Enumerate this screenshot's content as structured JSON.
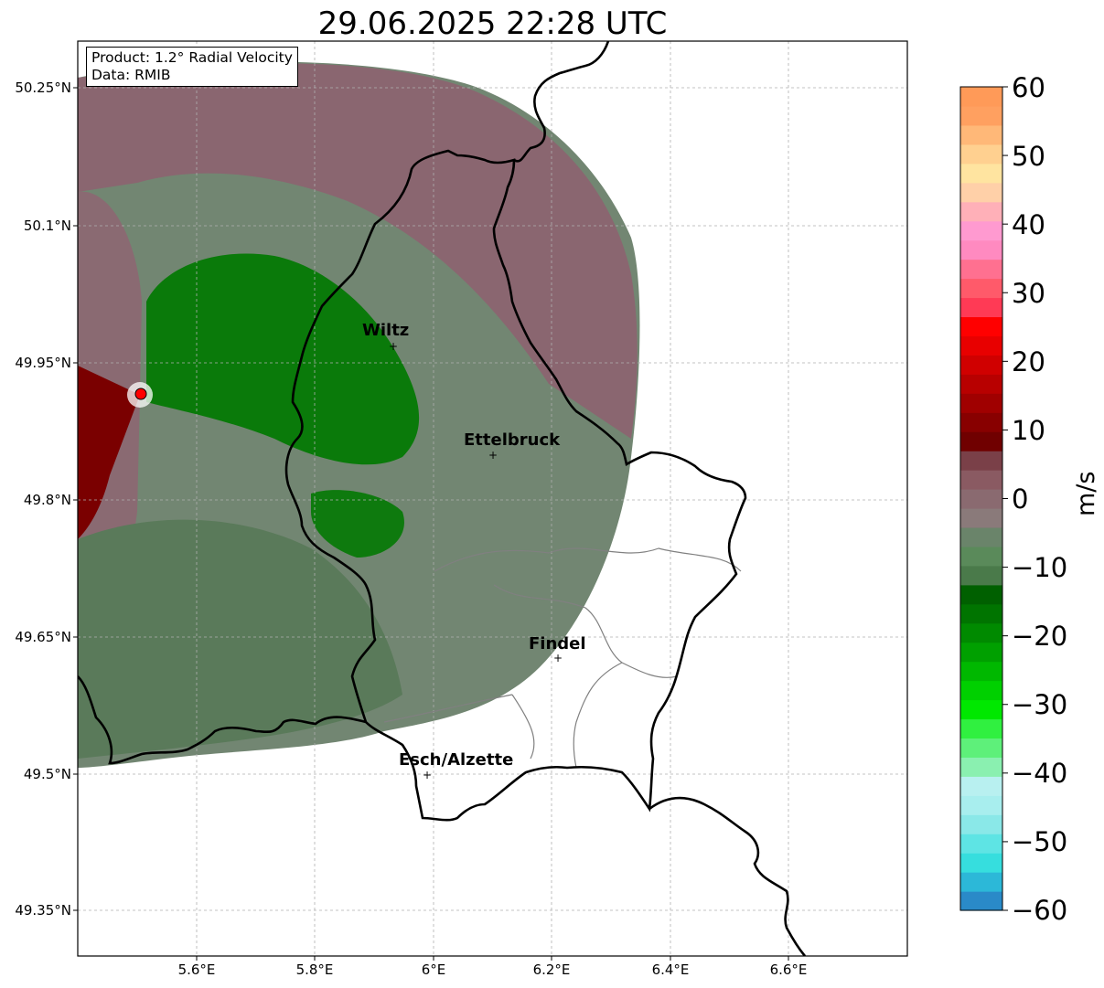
{
  "title": "29.06.2025 22:28 UTC",
  "info": {
    "product": "Product: 1.2° Radial Velocity",
    "data": "Data: RMIB"
  },
  "lat_ticks": [
    "50.25°N",
    "50.1°N",
    "49.95°N",
    "49.8°N",
    "49.65°N",
    "49.5°N",
    "49.35°N"
  ],
  "lon_ticks": [
    "5.6°E",
    "5.8°E",
    "6°E",
    "6.2°E",
    "6.4°E",
    "6.6°E"
  ],
  "cities": [
    {
      "name": "Wiltz"
    },
    {
      "name": "Ettelbruck"
    },
    {
      "name": "Findel"
    },
    {
      "name": "Esch/Alzette"
    }
  ],
  "colorbar": {
    "label": "m/s",
    "ticks": [
      "60",
      "50",
      "40",
      "30",
      "20",
      "10",
      "0",
      "−10",
      "−20",
      "−30",
      "−40",
      "−50",
      "−60"
    ],
    "min": -60,
    "max": 60,
    "colors": [
      "#2a8ac8",
      "#2cb8d8",
      "#36dede",
      "#5ee4e4",
      "#8ae8e8",
      "#a8eeee",
      "#b8f0f0",
      "#8af0b0",
      "#5ef07a",
      "#30f040",
      "#00e800",
      "#00d000",
      "#00b800",
      "#00a000",
      "#008a00",
      "#007400",
      "#006000",
      "#4a7a4a",
      "#5a8a5a",
      "#6a846a",
      "#8a7a7a",
      "#8a6a70",
      "#8a5a62",
      "#7a4048",
      "#700000",
      "#880000",
      "#a00000",
      "#b80000",
      "#d00000",
      "#e80000",
      "#ff0000",
      "#ff3a55",
      "#ff5a6a",
      "#ff7090",
      "#ff8ac0",
      "#ff9ad0",
      "#ffb0b8",
      "#ffd0a8",
      "#ffe4a0",
      "#ffd090",
      "#ffb878",
      "#ffa060",
      "#ff9a58"
    ]
  },
  "radar": {
    "name": "radar-site"
  }
}
